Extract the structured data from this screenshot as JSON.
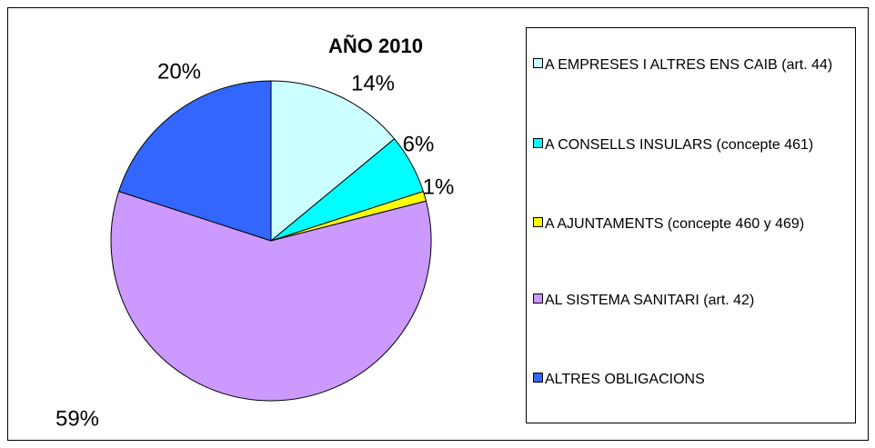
{
  "chart_data": {
    "type": "pie",
    "title": "AÑO 2010",
    "categories": [
      "A EMPRESES I ALTRES ENS CAIB (art. 44)",
      "A CONSELLS INSULARS (concepte 461)",
      "A AJUNTAMENTS (concepte 460 y 469)",
      "AL SISTEMA SANITARI (art. 42)",
      "ALTRES OBLIGACIONS"
    ],
    "values": [
      14,
      6,
      1,
      59,
      20
    ],
    "value_labels": [
      "14%",
      "6%",
      "1%",
      "59%",
      "20%"
    ],
    "colors": [
      "#ccffff",
      "#00ffff",
      "#ffff00",
      "#cc99ff",
      "#3366ff"
    ],
    "legend": "right"
  }
}
